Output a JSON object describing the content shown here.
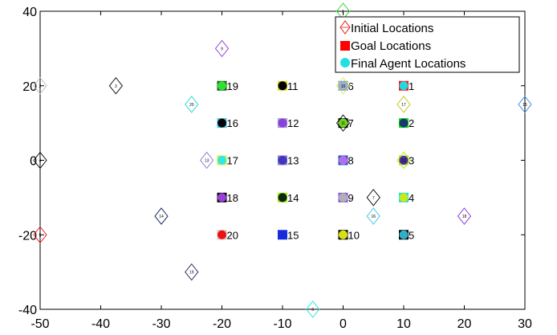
{
  "chart_data": {
    "type": "scatter",
    "title": "",
    "xlabel": "",
    "ylabel": "",
    "xlim": [
      -50,
      30
    ],
    "ylim": [
      -40,
      40
    ],
    "xticks": [
      -50,
      -40,
      -30,
      -20,
      -10,
      0,
      10,
      20,
      30
    ],
    "yticks": [
      -40,
      -20,
      0,
      20,
      40
    ],
    "legend": {
      "placement": "top-right",
      "entries": [
        "Initial Locations",
        "Goal Locations",
        "Final Agent Locations"
      ]
    },
    "colors": {
      "initial_marker": "#e0201b",
      "goal_marker": "#ff0000",
      "final_marker": "#22e0e0"
    },
    "goals": [
      {
        "id": "1",
        "x": 10,
        "y": 20,
        "color": "#ff1010",
        "final": "#22d8e0"
      },
      {
        "id": "2",
        "x": 10,
        "y": 10,
        "color": "#11dd11",
        "final": "#163a6e"
      },
      {
        "id": "3",
        "x": 10,
        "y": 0,
        "color": "#a7e81a",
        "final": "#4a2f9a"
      },
      {
        "id": "4",
        "x": 10,
        "y": -10,
        "color": "#14e0e8",
        "final": "#c8e81c"
      },
      {
        "id": "5",
        "x": 10,
        "y": -20,
        "color": "#050505",
        "final": "#2fb0c8"
      },
      {
        "id": "6",
        "x": 0,
        "y": 20,
        "color": "#4a8fe0",
        "final": "#9fb0c8"
      },
      {
        "id": "7",
        "x": 0,
        "y": 10,
        "color": "#0a0a0a",
        "final": "#6ed81a"
      },
      {
        "id": "8",
        "x": 0,
        "y": 0,
        "color": "#2a4fd0",
        "final": "#b070e8"
      },
      {
        "id": "9",
        "x": 0,
        "y": -10,
        "color": "#8a55e0",
        "final": "#b0b0b0"
      },
      {
        "id": "10",
        "x": 0,
        "y": -20,
        "color": "#050505",
        "final": "#d8e010"
      },
      {
        "id": "11",
        "x": -10,
        "y": 20,
        "color": "#e0e020",
        "final": "#050505"
      },
      {
        "id": "12",
        "x": -10,
        "y": 10,
        "color": "#a898d0",
        "final": "#8a40e0"
      },
      {
        "id": "13",
        "x": -10,
        "y": 0,
        "color": "#9a70d8",
        "final": "#3a3ab8"
      },
      {
        "id": "14",
        "x": -10,
        "y": -10,
        "color": "#a8e820",
        "final": "#0a2a0a"
      },
      {
        "id": "15",
        "x": -10,
        "y": -20,
        "color": "#1030e8",
        "final": "#1a2ad8"
      },
      {
        "id": "16",
        "x": -20,
        "y": 10,
        "color": "#48c8e8",
        "final": "#050505"
      },
      {
        "id": "17",
        "x": -20,
        "y": 0,
        "color": "#d8f020",
        "final": "#30e8e8"
      },
      {
        "id": "18",
        "x": -20,
        "y": -10,
        "color": "#050505",
        "final": "#9a40d8"
      },
      {
        "id": "19",
        "x": -20,
        "y": 20,
        "color": "#1a5a1a",
        "final": "#30e030"
      },
      {
        "id": "20",
        "x": -20,
        "y": -20,
        "color": "#c8c8c8",
        "final": "#f01010"
      }
    ],
    "initial": [
      {
        "id": "1",
        "x": 0,
        "y": 40,
        "color": "#2ad82a"
      },
      {
        "id": "2",
        "x": -50,
        "y": 20,
        "color": "#c0c0c0"
      },
      {
        "id": "3",
        "x": -37.5,
        "y": 20,
        "color": "#0a0a0a"
      },
      {
        "id": "4",
        "x": -50,
        "y": 0,
        "color": "#0a0a0a"
      },
      {
        "id": "5",
        "x": -50,
        "y": -20,
        "color": "#e02020"
      },
      {
        "id": "6",
        "x": -5,
        "y": -40,
        "color": "#30e0e0"
      },
      {
        "id": "7",
        "x": 5,
        "y": -10,
        "color": "#0a0a0a"
      },
      {
        "id": "8",
        "x": 0,
        "y": 30,
        "color": "#2030c8"
      },
      {
        "id": "9",
        "x": -20,
        "y": 30,
        "color": "#8a40d8"
      },
      {
        "id": "10",
        "x": 0,
        "y": 20,
        "color": "#e8e850"
      },
      {
        "id": "11",
        "x": 0,
        "y": 10,
        "color": "#0a0a0a"
      },
      {
        "id": "12",
        "x": 10,
        "y": 0,
        "color": "#a8e820"
      },
      {
        "id": "13",
        "x": -22.5,
        "y": 0,
        "color": "#9a70d8"
      },
      {
        "id": "14",
        "x": -30,
        "y": -15,
        "color": "#1a2a5a"
      },
      {
        "id": "15",
        "x": 30,
        "y": 15,
        "color": "#4a8fe0"
      },
      {
        "id": "16",
        "x": 5,
        "y": -15,
        "color": "#48c8e8"
      },
      {
        "id": "17",
        "x": 10,
        "y": 15,
        "color": "#c8c820"
      },
      {
        "id": "18",
        "x": 20,
        "y": -15,
        "color": "#8a40d8"
      },
      {
        "id": "19",
        "x": -25,
        "y": -30,
        "color": "#1a2a5a"
      },
      {
        "id": "20",
        "x": -25,
        "y": 15,
        "color": "#30d8d8"
      }
    ]
  }
}
